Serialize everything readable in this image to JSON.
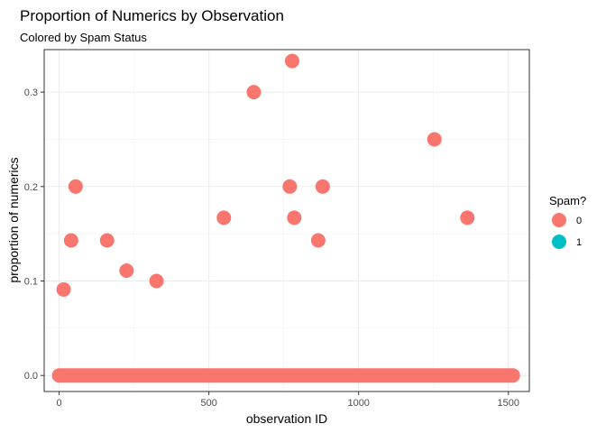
{
  "chart_data": {
    "type": "scatter",
    "title": "Proportion of Numerics by Observation",
    "subtitle": "Colored by Spam Status",
    "xlabel": "observation ID",
    "ylabel": "proportion of numerics",
    "xlim": [
      -50,
      1570
    ],
    "ylim": [
      -0.017,
      0.345
    ],
    "x_ticks": [
      0,
      500,
      1000,
      1500
    ],
    "x_tick_labels": [
      "0",
      "500",
      "1000",
      "1500"
    ],
    "y_ticks": [
      0.0,
      0.1,
      0.2,
      0.3
    ],
    "y_tick_labels": [
      "0.0",
      "0.1",
      "0.2",
      "0.3"
    ],
    "grid": true,
    "legend": {
      "title": "Spam?",
      "placement": "right",
      "entries": [
        {
          "label": "0",
          "color": "#F8766D"
        },
        {
          "label": "1",
          "color": "#00BFC4"
        }
      ]
    },
    "series": [
      {
        "name": "0",
        "color": "#F8766D",
        "baseline_range": {
          "y": 0.0,
          "x_from": 0,
          "x_to": 1515
        },
        "points": [
          {
            "x": 15,
            "y": 0.091
          },
          {
            "x": 40,
            "y": 0.143
          },
          {
            "x": 55,
            "y": 0.2
          },
          {
            "x": 160,
            "y": 0.143
          },
          {
            "x": 225,
            "y": 0.111
          },
          {
            "x": 325,
            "y": 0.1
          },
          {
            "x": 550,
            "y": 0.167
          },
          {
            "x": 650,
            "y": 0.3
          },
          {
            "x": 770,
            "y": 0.2
          },
          {
            "x": 778,
            "y": 0.333
          },
          {
            "x": 785,
            "y": 0.167
          },
          {
            "x": 865,
            "y": 0.143
          },
          {
            "x": 880,
            "y": 0.2
          },
          {
            "x": 1253,
            "y": 0.25
          },
          {
            "x": 1363,
            "y": 0.167
          }
        ]
      },
      {
        "name": "1",
        "color": "#00BFC4",
        "points": []
      }
    ]
  }
}
